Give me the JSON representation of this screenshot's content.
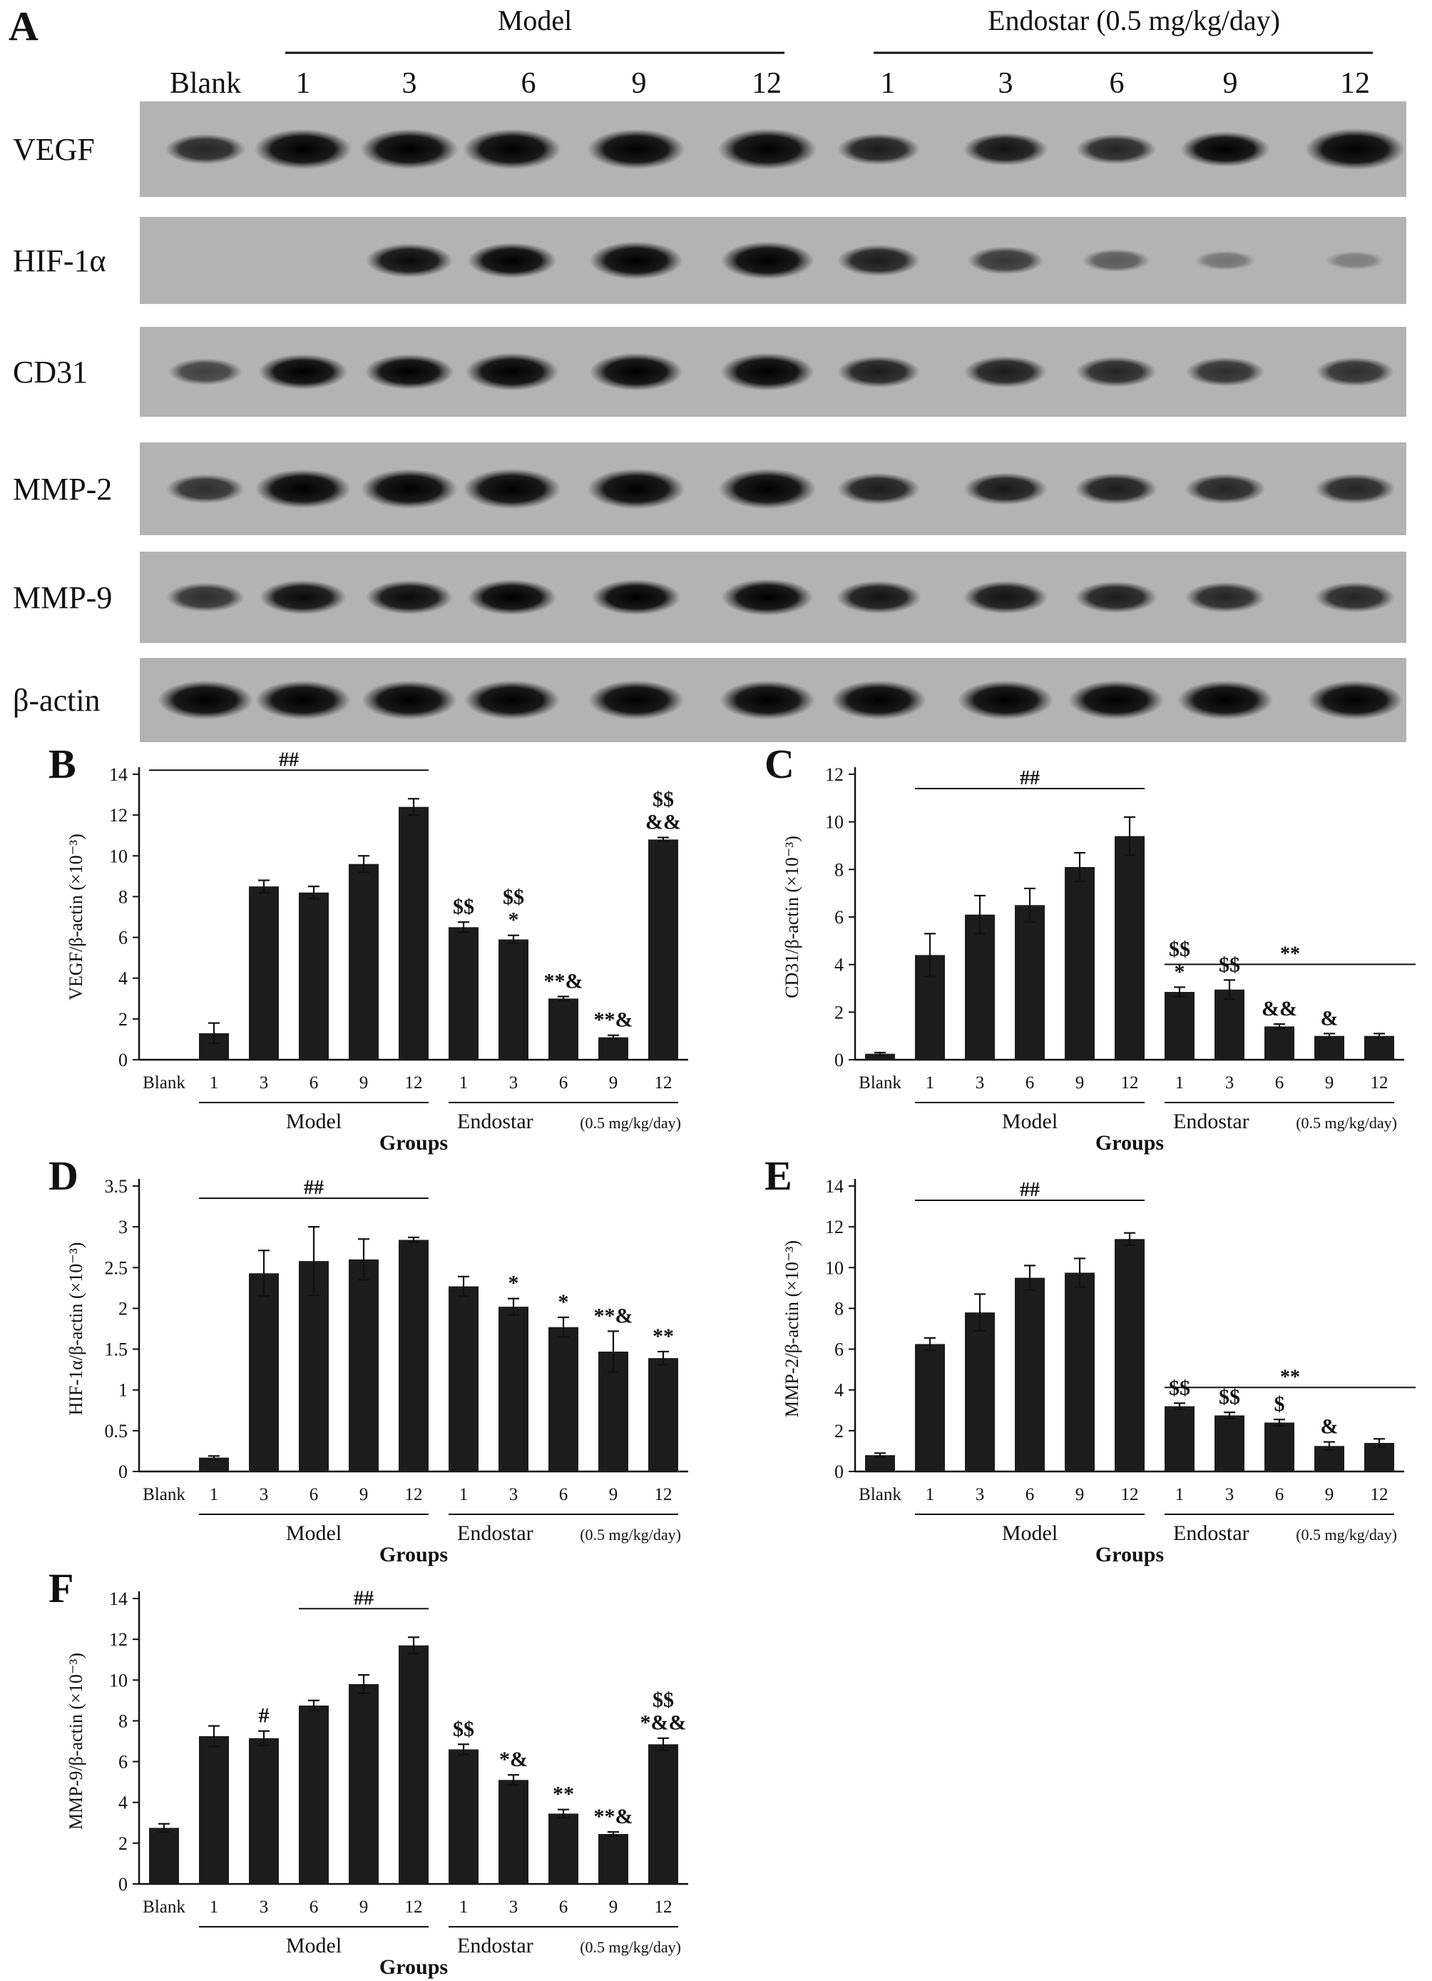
{
  "blot": {
    "panel_letter": "A",
    "model_label": "Model",
    "endostar_label": "Endostar (0.5 mg/kg/day)",
    "lanes": [
      "Blank",
      "1",
      "3",
      "6",
      "9",
      "12",
      "1",
      "3",
      "6",
      "9",
      "12"
    ],
    "rows": [
      {
        "label": "VEGF",
        "intensity": [
          0.55,
          0.95,
          0.95,
          0.95,
          0.95,
          0.98,
          0.6,
          0.65,
          0.55,
          0.75,
          1.0
        ]
      },
      {
        "label": "HIF-1α",
        "intensity": [
          0.0,
          0.0,
          0.7,
          0.75,
          0.85,
          0.85,
          0.6,
          0.45,
          0.25,
          0.1,
          0.05
        ]
      },
      {
        "label": "CD31",
        "intensity": [
          0.4,
          0.75,
          0.75,
          0.85,
          0.85,
          0.85,
          0.6,
          0.6,
          0.55,
          0.5,
          0.5
        ]
      },
      {
        "label": "MMP-2",
        "intensity": [
          0.5,
          0.9,
          0.92,
          0.95,
          0.95,
          0.95,
          0.6,
          0.62,
          0.6,
          0.55,
          0.55
        ]
      },
      {
        "label": "MMP-9",
        "intensity": [
          0.5,
          0.7,
          0.7,
          0.75,
          0.75,
          0.8,
          0.65,
          0.65,
          0.6,
          0.55,
          0.55
        ]
      },
      {
        "label": "β-actin",
        "intensity": [
          0.9,
          0.9,
          0.9,
          0.9,
          0.9,
          0.9,
          0.9,
          0.9,
          0.9,
          0.9,
          0.9
        ]
      }
    ]
  },
  "chart_data": [
    {
      "panel": "B",
      "type": "bar",
      "categories": [
        "Blank",
        "1",
        "3",
        "6",
        "9",
        "12",
        "1",
        "3",
        "6",
        "9",
        "12"
      ],
      "values": [
        0,
        1.3,
        8.5,
        8.2,
        9.6,
        12.4,
        6.5,
        5.9,
        3.0,
        1.1,
        10.8
      ],
      "errors": [
        0,
        0.5,
        0.3,
        0.3,
        0.4,
        0.4,
        0.25,
        0.2,
        0.1,
        0.1,
        0.1
      ],
      "annotations": [
        "",
        "",
        "",
        "",
        "",
        "",
        "$$",
        "$$\n*",
        "**&",
        "**&",
        "$$\n&&"
      ],
      "bracket": {
        "label": "##",
        "from": 0,
        "to": 5
      },
      "ylim": [
        0,
        14
      ],
      "yticks": [
        0,
        2,
        4,
        6,
        8,
        10,
        12,
        14
      ],
      "ylabel": "VEGF/β-actin (×10⁻³)",
      "group_model": "Model",
      "group_endostar": "Endostar",
      "group_dose": "(0.5 mg/kg/day)",
      "xlabel": "Groups"
    },
    {
      "panel": "C",
      "type": "bar",
      "categories": [
        "Blank",
        "1",
        "3",
        "6",
        "9",
        "12",
        "1",
        "3",
        "6",
        "9",
        "12"
      ],
      "values": [
        0.25,
        4.4,
        6.1,
        6.5,
        8.1,
        9.4,
        2.85,
        2.95,
        1.4,
        1.0,
        1.0
      ],
      "errors": [
        0.05,
        0.9,
        0.8,
        0.7,
        0.6,
        0.8,
        0.2,
        0.4,
        0.1,
        0.1,
        0.1
      ],
      "annotations": [
        "",
        "",
        "",
        "",
        "",
        "",
        "$$\n*",
        "$$",
        "&&",
        "&",
        ""
      ],
      "bracket": {
        "label": "##",
        "from": 1,
        "to": 5
      },
      "bracket2": {
        "label": "**",
        "from": 6,
        "to": 10
      },
      "ylim": [
        0,
        12
      ],
      "yticks": [
        0,
        2,
        4,
        6,
        8,
        10,
        12
      ],
      "ylabel": "CD31/β-actin (×10⁻³)",
      "group_model": "Model",
      "group_endostar": "Endostar",
      "group_dose": "(0.5 mg/kg/day)",
      "xlabel": "Groups"
    },
    {
      "panel": "D",
      "type": "bar",
      "categories": [
        "Blank",
        "1",
        "3",
        "6",
        "9",
        "12",
        "1",
        "3",
        "6",
        "9",
        "12"
      ],
      "values": [
        0,
        0.17,
        2.43,
        2.58,
        2.6,
        2.84,
        2.27,
        2.02,
        1.77,
        1.47,
        1.39
      ],
      "errors": [
        0,
        0.02,
        0.28,
        0.42,
        0.25,
        0.03,
        0.12,
        0.1,
        0.12,
        0.25,
        0.08
      ],
      "annotations": [
        "",
        "",
        "",
        "",
        "",
        "",
        "",
        "*",
        "*",
        "**&",
        "**"
      ],
      "bracket": {
        "label": "##",
        "from": 1,
        "to": 5
      },
      "ylim": [
        0,
        3.5
      ],
      "yticks": [
        0,
        0.5,
        1,
        1.5,
        2,
        2.5,
        3,
        3.5
      ],
      "ylabel": "HIF-1α/β-actin (×10⁻³)",
      "group_model": "Model",
      "group_endostar": "Endostar",
      "group_dose": "(0.5 mg/kg/day)",
      "xlabel": "Groups"
    },
    {
      "panel": "E",
      "type": "bar",
      "categories": [
        "Blank",
        "1",
        "3",
        "6",
        "9",
        "12",
        "1",
        "3",
        "6",
        "9",
        "12"
      ],
      "values": [
        0.8,
        6.25,
        7.8,
        9.5,
        9.75,
        11.4,
        3.2,
        2.75,
        2.4,
        1.25,
        1.4
      ],
      "errors": [
        0.1,
        0.3,
        0.9,
        0.6,
        0.7,
        0.3,
        0.15,
        0.15,
        0.15,
        0.2,
        0.2
      ],
      "annotations": [
        "",
        "",
        "",
        "",
        "",
        "",
        "$$",
        "$$",
        "$",
        "&",
        ""
      ],
      "bracket": {
        "label": "##",
        "from": 1,
        "to": 5
      },
      "bracket2": {
        "label": "**",
        "from": 6,
        "to": 10
      },
      "ylim": [
        0,
        14
      ],
      "yticks": [
        0,
        2,
        4,
        6,
        8,
        10,
        12,
        14
      ],
      "ylabel": "MMP-2/β-actin (×10⁻³)",
      "group_model": "Model",
      "group_endostar": "Endostar",
      "group_dose": "(0.5 mg/kg/day)",
      "xlabel": "Groups"
    },
    {
      "panel": "F",
      "type": "bar",
      "categories": [
        "Blank",
        "1",
        "3",
        "6",
        "9",
        "12",
        "1",
        "3",
        "6",
        "9",
        "12"
      ],
      "values": [
        2.75,
        7.25,
        7.15,
        8.75,
        9.8,
        11.7,
        6.6,
        5.1,
        3.45,
        2.45,
        6.85
      ],
      "errors": [
        0.2,
        0.5,
        0.35,
        0.25,
        0.45,
        0.4,
        0.25,
        0.25,
        0.2,
        0.1,
        0.3
      ],
      "annotations": [
        "",
        "",
        "#",
        "",
        "",
        "",
        "$$",
        "*&",
        "**",
        "**&",
        "$$\n*&&"
      ],
      "bracket": {
        "label": "##",
        "from": 3,
        "to": 5
      },
      "ylim": [
        0,
        14
      ],
      "yticks": [
        0,
        2,
        4,
        6,
        8,
        10,
        12,
        14
      ],
      "ylabel": "MMP-9/β-actin (×10⁻³)",
      "group_model": "Model",
      "group_endostar": "Endostar",
      "group_dose": "(0.5 mg/kg/day)",
      "xlabel": "Groups"
    }
  ]
}
